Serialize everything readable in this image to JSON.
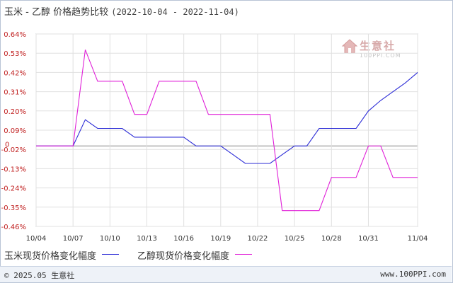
{
  "header": {
    "title": "玉米 - 乙醇 价格趋势比较",
    "date_range": "(2022-10-04 - 2022-11-04)"
  },
  "watermark": {
    "text": "生意社",
    "sub": "100PPI.COM"
  },
  "footer": {
    "copyright": "© 2025.05 生意社",
    "site": "www.100PPI.com"
  },
  "chart_data": {
    "type": "line",
    "title": "玉米 - 乙醇 价格趋势比较",
    "ylim": [
      -0.46,
      0.64
    ],
    "yticks": [
      "0.64%",
      "0.53%",
      "0.42%",
      "0.31%",
      "0.20%",
      "0.09%",
      "-0.02%",
      "-0.13%",
      "-0.24%",
      "-0.35%",
      "-0.46%"
    ],
    "ytick_values": [
      0.64,
      0.53,
      0.42,
      0.31,
      0.2,
      0.09,
      -0.02,
      -0.13,
      -0.24,
      -0.35,
      -0.46
    ],
    "zero_label": "0",
    "xticks": [
      "10/04",
      "10/07",
      "10/10",
      "10/13",
      "10/16",
      "10/19",
      "10/22",
      "10/25",
      "10/28",
      "10/31",
      "11/04"
    ],
    "x_dates": [
      "10/04",
      "10/05",
      "10/06",
      "10/07",
      "10/08",
      "10/09",
      "10/10",
      "10/11",
      "10/12",
      "10/13",
      "10/14",
      "10/15",
      "10/16",
      "10/17",
      "10/18",
      "10/19",
      "10/20",
      "10/21",
      "10/22",
      "10/23",
      "10/24",
      "10/25",
      "10/26",
      "10/27",
      "10/28",
      "10/29",
      "10/30",
      "10/31",
      "11/01",
      "11/02",
      "11/03",
      "11/04"
    ],
    "grid": true,
    "legend_position": "bottom",
    "series": [
      {
        "name": "玉米现货价格变化幅度",
        "color": "#2b2bd6",
        "values": [
          0,
          0,
          0,
          0,
          0.15,
          0.1,
          0.1,
          0.1,
          0.05,
          0.05,
          0.05,
          0.05,
          0.05,
          0,
          0,
          0,
          -0.05,
          -0.1,
          -0.1,
          -0.1,
          -0.05,
          0,
          0,
          0.1,
          0.1,
          0.1,
          0.1,
          0.2,
          0.26,
          0.31,
          0.36,
          0.42
        ]
      },
      {
        "name": "乙醇现货价格变化幅度",
        "color": "#e020d8",
        "values": [
          0,
          0,
          0,
          0,
          0.55,
          0.37,
          0.37,
          0.37,
          0.18,
          0.18,
          0.37,
          0.37,
          0.37,
          0.37,
          0.18,
          0.18,
          0.18,
          0.18,
          0.18,
          0.18,
          -0.37,
          -0.37,
          -0.37,
          -0.37,
          -0.18,
          -0.18,
          -0.18,
          0,
          0,
          -0.18,
          -0.18,
          -0.18
        ]
      }
    ]
  }
}
